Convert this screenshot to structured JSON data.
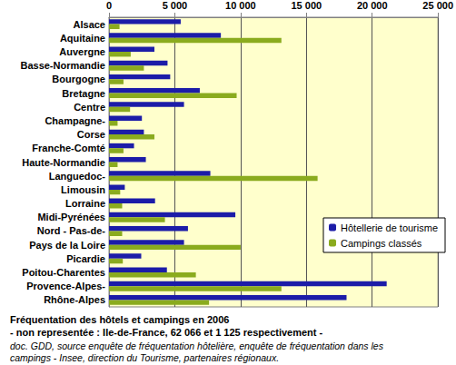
{
  "chart_data": {
    "type": "bar",
    "orientation": "horizontal",
    "title": "Fréquentation des hôtels et campings en 2006",
    "subtitle": "- non representée : Ile-de-France, 62 066 et 1 125 respectivement -",
    "annotations": [
      "doc. GDD, source enquête de fréquentation hôtelière, enquête de fréquentation dans les campings - Insee, direction du Tourisme, partenaires régionaux."
    ],
    "categories": [
      "Alsace",
      "Aquitaine",
      "Auvergne",
      "Basse-Normandie",
      "Bourgogne",
      "Bretagne",
      "Centre",
      "Champagne-",
      "Corse",
      "Franche-Comté",
      "Haute-Normandie",
      "Languedoc-",
      "Limousin",
      "Lorraine",
      "Midi-Pyrénées",
      "Nord - Pas-de-",
      "Pays de la Loire",
      "Picardie",
      "Poitou-Charentes",
      "Provence-Alpes-",
      "Rhône-Alpes"
    ],
    "series": [
      {
        "name": "Hôtellerie de tourisme",
        "color": "#1c1ca8",
        "values": [
          5450,
          8500,
          3450,
          4450,
          4650,
          6900,
          5700,
          2500,
          2650,
          1900,
          2800,
          7700,
          1200,
          3500,
          9600,
          6000,
          5700,
          2450,
          4400,
          21100,
          18050
        ]
      },
      {
        "name": "Campings classés",
        "color": "#8aab1e",
        "values": [
          800,
          13100,
          1650,
          2650,
          1100,
          9700,
          1600,
          650,
          3450,
          1100,
          650,
          15850,
          850,
          1000,
          4250,
          1000,
          10000,
          1050,
          6600,
          13100,
          7600
        ]
      }
    ],
    "xlim": [
      0,
      25000
    ],
    "xticks": [
      0,
      {
        "value": 5000,
        "label": "5 000"
      },
      {
        "value": 10000,
        "label": "10 000"
      },
      {
        "value": 15000,
        "label": "15 000"
      },
      {
        "value": 20000,
        "label": "20 000"
      },
      {
        "value": 25000,
        "label": "25 000"
      }
    ],
    "grid": true,
    "legend": "lower right",
    "data_labels": false
  }
}
